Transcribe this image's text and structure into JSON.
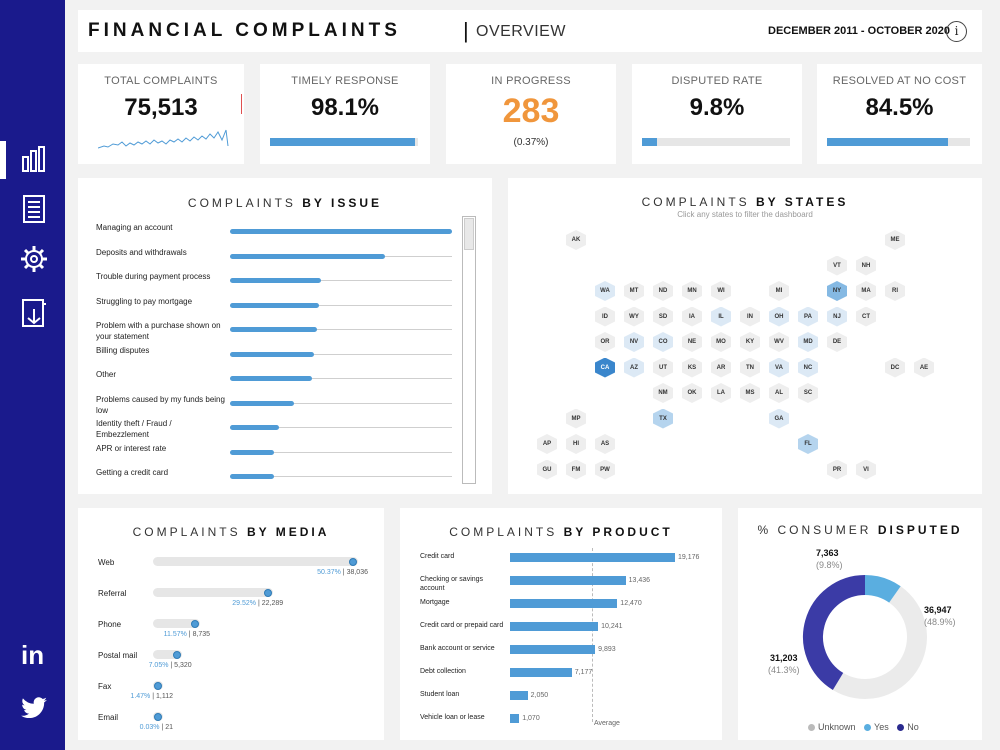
{
  "header": {
    "title": "FINANCIAL COMPLAINTS",
    "separator": "|",
    "subtitle": "OVERVIEW",
    "date_range": "DECEMBER 2011 - OCTOBER 2020",
    "info": "i"
  },
  "sidebar": {
    "items": [
      {
        "icon": "bar-chart-icon",
        "active": true
      },
      {
        "icon": "document-icon",
        "active": false
      },
      {
        "icon": "gear-icon",
        "active": false
      },
      {
        "icon": "book-icon",
        "active": false
      }
    ],
    "social": [
      {
        "icon": "linkedin-icon",
        "label": "in"
      },
      {
        "icon": "twitter-icon"
      }
    ]
  },
  "kpis": {
    "total": {
      "label": "TOTAL COMPLAINTS",
      "value": "75,513"
    },
    "timely": {
      "label": "TIMELY RESPONSE",
      "value": "98.1%",
      "fraction": 0.981
    },
    "in_progress": {
      "label": "IN PROGRESS",
      "value": "283",
      "sub": "(0.37%)",
      "color": "#f0963c"
    },
    "disputed": {
      "label": "DISPUTED RATE",
      "value": "9.8%",
      "fraction": 0.098
    },
    "resolved": {
      "label": "RESOLVED AT NO COST",
      "value": "84.5%",
      "fraction": 0.845
    }
  },
  "issue": {
    "title_light": "COMPLAINTS",
    "title_bold": "BY ISSUE",
    "items": [
      {
        "label": "Managing an account",
        "value": 1.0
      },
      {
        "label": "Deposits and withdrawals",
        "value": 0.7
      },
      {
        "label": "Trouble during payment process",
        "value": 0.41
      },
      {
        "label": "Struggling to pay mortgage",
        "value": 0.4
      },
      {
        "label": "Problem with a purchase shown on your statement",
        "value": 0.39
      },
      {
        "label": "Billing disputes",
        "value": 0.38
      },
      {
        "label": "Other",
        "value": 0.37
      },
      {
        "label": "Problems caused by my funds being low",
        "value": 0.29
      },
      {
        "label": "Identity theft / Fraud / Embezzlement",
        "value": 0.22
      },
      {
        "label": "APR or interest rate",
        "value": 0.2
      },
      {
        "label": "Getting a credit card",
        "value": 0.2
      }
    ]
  },
  "states": {
    "title_light": "COMPLAINTS",
    "title_bold": "BY STATES",
    "subtitle": "Click any states to filter the dashboard",
    "colors": {
      "0": "#eeeeee",
      "1": "#dce9f5",
      "2": "#b5d4ee",
      "3": "#85b9e3",
      "4": "#3a86cc"
    },
    "hexes": [
      {
        "code": "AK",
        "c": 0,
        "r": 0,
        "l": 0
      },
      {
        "code": "ME",
        "c": 11,
        "r": 0,
        "l": 0
      },
      {
        "code": "VT",
        "c": 9,
        "r": 1,
        "l": 0
      },
      {
        "code": "NH",
        "c": 10,
        "r": 1,
        "l": 0
      },
      {
        "code": "WA",
        "c": 1,
        "r": 2,
        "l": 1
      },
      {
        "code": "MT",
        "c": 2,
        "r": 2,
        "l": 0
      },
      {
        "code": "ND",
        "c": 3,
        "r": 2,
        "l": 0
      },
      {
        "code": "MN",
        "c": 4,
        "r": 2,
        "l": 0
      },
      {
        "code": "WI",
        "c": 5,
        "r": 2,
        "l": 0
      },
      {
        "code": "MI",
        "c": 7,
        "r": 2,
        "l": 0
      },
      {
        "code": "NY",
        "c": 9,
        "r": 2,
        "l": 3
      },
      {
        "code": "MA",
        "c": 10,
        "r": 2,
        "l": 0
      },
      {
        "code": "RI",
        "c": 11,
        "r": 2,
        "l": 0
      },
      {
        "code": "ID",
        "c": 1,
        "r": 3,
        "l": 0
      },
      {
        "code": "WY",
        "c": 2,
        "r": 3,
        "l": 0
      },
      {
        "code": "SD",
        "c": 3,
        "r": 3,
        "l": 0
      },
      {
        "code": "IA",
        "c": 4,
        "r": 3,
        "l": 0
      },
      {
        "code": "IL",
        "c": 5,
        "r": 3,
        "l": 1
      },
      {
        "code": "IN",
        "c": 6,
        "r": 3,
        "l": 0
      },
      {
        "code": "OH",
        "c": 7,
        "r": 3,
        "l": 1
      },
      {
        "code": "PA",
        "c": 8,
        "r": 3,
        "l": 1
      },
      {
        "code": "NJ",
        "c": 9,
        "r": 3,
        "l": 1
      },
      {
        "code": "CT",
        "c": 10,
        "r": 3,
        "l": 0
      },
      {
        "code": "OR",
        "c": 1,
        "r": 4,
        "l": 0
      },
      {
        "code": "NV",
        "c": 2,
        "r": 4,
        "l": 1
      },
      {
        "code": "CO",
        "c": 3,
        "r": 4,
        "l": 1
      },
      {
        "code": "NE",
        "c": 4,
        "r": 4,
        "l": 0
      },
      {
        "code": "MO",
        "c": 5,
        "r": 4,
        "l": 0
      },
      {
        "code": "KY",
        "c": 6,
        "r": 4,
        "l": 0
      },
      {
        "code": "WV",
        "c": 7,
        "r": 4,
        "l": 0
      },
      {
        "code": "MD",
        "c": 8,
        "r": 4,
        "l": 1
      },
      {
        "code": "DE",
        "c": 9,
        "r": 4,
        "l": 0
      },
      {
        "code": "CA",
        "c": 1,
        "r": 5,
        "l": 4
      },
      {
        "code": "AZ",
        "c": 2,
        "r": 5,
        "l": 1
      },
      {
        "code": "UT",
        "c": 3,
        "r": 5,
        "l": 0
      },
      {
        "code": "KS",
        "c": 4,
        "r": 5,
        "l": 0
      },
      {
        "code": "AR",
        "c": 5,
        "r": 5,
        "l": 0
      },
      {
        "code": "TN",
        "c": 6,
        "r": 5,
        "l": 0
      },
      {
        "code": "VA",
        "c": 7,
        "r": 5,
        "l": 1
      },
      {
        "code": "NC",
        "c": 8,
        "r": 5,
        "l": 1
      },
      {
        "code": "DC",
        "c": 11,
        "r": 5,
        "l": 0
      },
      {
        "code": "AE",
        "c": 12,
        "r": 5,
        "l": 0
      },
      {
        "code": "NM",
        "c": 3,
        "r": 6,
        "l": 0
      },
      {
        "code": "OK",
        "c": 4,
        "r": 6,
        "l": 0
      },
      {
        "code": "LA",
        "c": 5,
        "r": 6,
        "l": 0
      },
      {
        "code": "MS",
        "c": 6,
        "r": 6,
        "l": 0
      },
      {
        "code": "AL",
        "c": 7,
        "r": 6,
        "l": 0
      },
      {
        "code": "SC",
        "c": 8,
        "r": 6,
        "l": 0
      },
      {
        "code": "MP",
        "c": 0,
        "r": 7,
        "l": 0
      },
      {
        "code": "TX",
        "c": 3,
        "r": 7,
        "l": 2
      },
      {
        "code": "GA",
        "c": 7,
        "r": 7,
        "l": 1
      },
      {
        "code": "AP",
        "c": -1,
        "r": 8,
        "l": 0
      },
      {
        "code": "HI",
        "c": 0,
        "r": 8,
        "l": 0
      },
      {
        "code": "AS",
        "c": 1,
        "r": 8,
        "l": 0
      },
      {
        "code": "FL",
        "c": 8,
        "r": 8,
        "l": 2
      },
      {
        "code": "GU",
        "c": -1,
        "r": 9,
        "l": 0
      },
      {
        "code": "FM",
        "c": 0,
        "r": 9,
        "l": 0
      },
      {
        "code": "PW",
        "c": 1,
        "r": 9,
        "l": 0
      },
      {
        "code": "PR",
        "c": 9,
        "r": 9,
        "l": 0
      },
      {
        "code": "VI",
        "c": 10,
        "r": 9,
        "l": 0
      }
    ]
  },
  "media": {
    "title_light": "COMPLAINTS",
    "title_bold": "BY MEDIA",
    "items": [
      {
        "label": "Web",
        "fraction": 0.5037,
        "pct": "50.37%",
        "count": "38,036"
      },
      {
        "label": "Referral",
        "fraction": 0.2952,
        "pct": "29.52%",
        "count": "22,289"
      },
      {
        "label": "Phone",
        "fraction": 0.1157,
        "pct": "11.57%",
        "count": "8,735"
      },
      {
        "label": "Postal mail",
        "fraction": 0.0705,
        "pct": "7.05%",
        "count": "5,320"
      },
      {
        "label": "Fax",
        "fraction": 0.0147,
        "pct": "1.47%",
        "count": "1,112"
      },
      {
        "label": "Email",
        "fraction": 0.0003,
        "pct": "0.03%",
        "count": "21"
      }
    ]
  },
  "product": {
    "title_light": "COMPLAINTS",
    "title_bold": "BY PRODUCT",
    "average_label": "Average",
    "average": 9440,
    "items": [
      {
        "label": "Credit card",
        "value": 19176,
        "display": "19,176"
      },
      {
        "label": "Checking or savings account",
        "value": 13436,
        "display": "13,436"
      },
      {
        "label": "Mortgage",
        "value": 12470,
        "display": "12,470"
      },
      {
        "label": "Credit card or prepaid card",
        "value": 10241,
        "display": "10,241"
      },
      {
        "label": "Bank account or service",
        "value": 9893,
        "display": "9,893"
      },
      {
        "label": "Debt collection",
        "value": 7177,
        "display": "7,177"
      },
      {
        "label": "Student loan",
        "value": 2050,
        "display": "2,050"
      },
      {
        "label": "Vehicle loan or lease",
        "value": 1070,
        "display": "1,070"
      }
    ]
  },
  "disputed": {
    "title_light": "% CONSUMER",
    "title_bold": "DISPUTED",
    "unknown": {
      "count": "36,947",
      "pct": "(48.9%)",
      "value": 36947,
      "color": "#ebebeb"
    },
    "yes": {
      "count": "7,363",
      "pct": "(9.8%)",
      "value": 7363,
      "color": "#5aaee0"
    },
    "no": {
      "count": "31,203",
      "pct": "(41.3%)",
      "value": 31203,
      "color": "#3b3ba6"
    },
    "legend": {
      "unknown": "Unknown",
      "yes": "Yes",
      "no": "No"
    }
  }
}
